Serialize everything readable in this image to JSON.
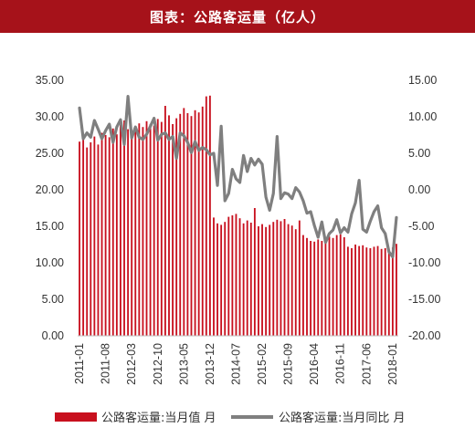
{
  "header": {
    "title": "图表：公路客运量（亿人）"
  },
  "colors": {
    "header_bg": "#a6121a",
    "bar": "#c8101e",
    "line": "#7f7f7f"
  },
  "chart_data": {
    "type": "bar+line",
    "title": "图表：公路客运量（亿人）",
    "x_tick_labels": [
      "2011-01",
      "2011-08",
      "2012-03",
      "2012-10",
      "2013-05",
      "2013-12",
      "2014-07",
      "2015-02",
      "2015-09",
      "2016-04",
      "2016-11",
      "2017-06",
      "2018-01"
    ],
    "y_left": {
      "ylim": [
        0,
        35
      ],
      "ticks": [
        "0.00",
        "5.00",
        "10.00",
        "15.00",
        "20.00",
        "25.00",
        "30.00",
        "35.00"
      ]
    },
    "y_right": {
      "ylim": [
        -20,
        15
      ],
      "ticks": [
        "-20.00",
        "-15.00",
        "-10.00",
        "-5.00",
        "0.00",
        "5.00",
        "10.00",
        "15.00"
      ]
    },
    "grid": false,
    "legend_position": "bottom",
    "start_month": "2011-01",
    "series": [
      {
        "name": "公路客运量:当月值 月",
        "type": "bar",
        "axis": "left",
        "values": [
          26.6,
          27.1,
          25.8,
          26.5,
          27.3,
          26.2,
          27.8,
          27.5,
          27.2,
          28.4,
          27.6,
          28.9,
          29.5,
          28.3,
          27.9,
          28.7,
          29.1,
          28.6,
          29.4,
          29.0,
          28.8,
          29.7,
          29.3,
          31.5,
          30.2,
          29.0,
          29.8,
          30.4,
          31.2,
          30.5,
          30.1,
          30.9,
          30.6,
          31.4,
          32.8,
          32.9,
          16.2,
          15.4,
          15.2,
          15.6,
          16.3,
          16.5,
          16.7,
          16.1,
          15.4,
          15.8,
          15.5,
          17.5,
          15.0,
          15.3,
          14.9,
          15.2,
          15.6,
          15.9,
          15.7,
          16.0,
          15.3,
          15.1,
          14.6,
          15.8,
          13.8,
          13.4,
          13.0,
          12.9,
          13.2,
          13.0,
          13.1,
          13.6,
          13.4,
          13.8,
          13.9,
          13.5,
          12.2,
          12.0,
          12.5,
          12.3,
          12.4,
          12.1,
          12.0,
          12.2,
          12.3,
          11.9,
          12.0,
          11.8,
          12.1,
          12.6
        ]
      },
      {
        "name": "公路客运量:当月同比 月",
        "type": "line",
        "axis": "right",
        "values": [
          11.2,
          7.0,
          7.8,
          7.2,
          9.5,
          8.3,
          7.0,
          8.1,
          9.0,
          6.5,
          8.6,
          9.6,
          6.2,
          12.8,
          7.1,
          8.6,
          7.2,
          6.9,
          7.6,
          8.7,
          9.8,
          6.8,
          7.6,
          7.8,
          6.9,
          7.3,
          4.3,
          7.8,
          7.4,
          6.5,
          5.1,
          6.6,
          5.4,
          5.8,
          5.5,
          4.8,
          5.0,
          0.6,
          8.7,
          -1.5,
          -0.5,
          2.8,
          1.5,
          1.0,
          4.7,
          2.5,
          4.3,
          3.4,
          4.2,
          3.5,
          -1.0,
          -2.8,
          -0.5,
          7.3,
          -1.2,
          -0.4,
          -0.6,
          -1.2,
          0.3,
          -0.3,
          -1.5,
          -3.2,
          -3.0,
          -4.9,
          -6.5,
          -4.4,
          -7.2,
          -6.0,
          -5.5,
          -4.1,
          -5.9,
          -5.2,
          -5.8,
          -3.3,
          -1.8,
          1.3,
          -5.4,
          -5.8,
          -4.3,
          -3.0,
          -2.2,
          -5.2,
          -6.0,
          -8.5,
          -9.2,
          -3.8
        ]
      }
    ]
  },
  "legend": {
    "bar_label": "公路客运量:当月值 月",
    "line_label": "公路客运量:当月同比 月"
  }
}
